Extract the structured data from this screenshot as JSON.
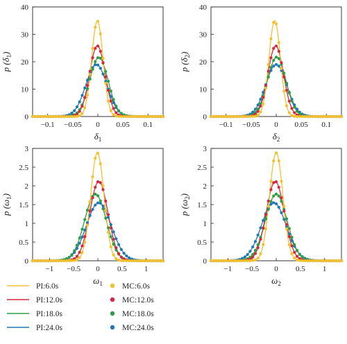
{
  "legend": {
    "lines": [
      {
        "label": "PI:6.0s",
        "color": "#f2c12e"
      },
      {
        "label": "PI:12.0s",
        "color": "#d7263d"
      },
      {
        "label": "PI:18.0s",
        "color": "#2e9e44"
      },
      {
        "label": "PI:24.0s",
        "color": "#1f77b4"
      }
    ],
    "markers": [
      {
        "label": "MC:6.0s",
        "color": "#f2c12e"
      },
      {
        "label": "MC:12.0s",
        "color": "#d7263d"
      },
      {
        "label": "MC:18.0s",
        "color": "#2e9e44"
      },
      {
        "label": "MC:24.0s",
        "color": "#1f77b4"
      }
    ]
  },
  "chart_data": [
    {
      "type": "line",
      "ylabel_main": "p (δ",
      "ylabel_sub": "1",
      "ylabel_end": ")",
      "xlabel_main": "δ",
      "xlabel_sub": "1",
      "xlim": [
        -0.13,
        0.13
      ],
      "ylim": [
        0,
        40
      ],
      "xticks": [
        -0.1,
        -0.05,
        0,
        0.05,
        0.1
      ],
      "xtick_labels": [
        "−0.1",
        "−0.05",
        "0",
        "0.05",
        "0.1"
      ],
      "yticks": [
        0,
        10,
        20,
        30,
        40
      ],
      "ytick_labels": [
        "0",
        "10",
        "20",
        "30",
        "40"
      ],
      "series": [
        {
          "name": "6.0s",
          "color": "#f2c12e",
          "peak": 34.9,
          "center": -0.001
        },
        {
          "name": "12.0s",
          "color": "#d7263d",
          "peak": 25.8,
          "center": -0.001
        },
        {
          "name": "18.0s",
          "color": "#2e9e44",
          "peak": 21.6,
          "center": 0.002
        },
        {
          "name": "24.0s",
          "color": "#1f77b4",
          "peak": 19.0,
          "center": -0.003
        }
      ]
    },
    {
      "type": "line",
      "ylabel_main": "p (δ",
      "ylabel_sub": "2",
      "ylabel_end": ")",
      "xlabel_main": "δ",
      "xlabel_sub": "2",
      "xlim": [
        -0.13,
        0.13
      ],
      "ylim": [
        0,
        40
      ],
      "xticks": [
        -0.1,
        -0.05,
        0,
        0.05,
        0.1
      ],
      "xtick_labels": [
        "−0.1",
        "−0.05",
        "0",
        "0.05",
        "0.1"
      ],
      "yticks": [
        0,
        10,
        20,
        30,
        40
      ],
      "ytick_labels": [
        "0",
        "10",
        "20",
        "30",
        "40"
      ],
      "series": [
        {
          "name": "6.0s",
          "color": "#f2c12e",
          "peak": 35.0,
          "center": -0.003
        },
        {
          "name": "12.0s",
          "color": "#d7263d",
          "peak": 25.8,
          "center": -0.001
        },
        {
          "name": "18.0s",
          "color": "#2e9e44",
          "peak": 21.7,
          "center": 0.001
        },
        {
          "name": "24.0s",
          "color": "#1f77b4",
          "peak": 19.0,
          "center": 0.0
        }
      ]
    },
    {
      "type": "line",
      "ylabel_main": "p (ω",
      "ylabel_sub": "1",
      "ylabel_end": ")",
      "xlabel_main": "ω",
      "xlabel_sub": "1",
      "xlim": [
        -1.35,
        1.35
      ],
      "ylim": [
        0,
        3
      ],
      "xticks": [
        -1,
        -0.5,
        0,
        0.5,
        1
      ],
      "xtick_labels": [
        "−1",
        "−0.5",
        "0",
        "0.5",
        "1"
      ],
      "yticks": [
        0,
        0.5,
        1,
        1.5,
        2,
        2.5,
        3
      ],
      "ytick_labels": [
        "0",
        "0.5",
        "1",
        "1.5",
        "2",
        "2.5",
        "3"
      ],
      "series": [
        {
          "name": "6.0s",
          "color": "#f2c12e",
          "peak": 2.88,
          "center": -0.01
        },
        {
          "name": "12.0s",
          "color": "#d7263d",
          "peak": 2.12,
          "center": 0.02
        },
        {
          "name": "18.0s",
          "color": "#2e9e44",
          "peak": 1.78,
          "center": -0.05
        },
        {
          "name": "24.0s",
          "color": "#1f77b4",
          "peak": 1.55,
          "center": 0.02
        }
      ]
    },
    {
      "type": "line",
      "ylabel_main": "p (ω",
      "ylabel_sub": "2",
      "ylabel_end": ")",
      "xlabel_main": "ω",
      "xlabel_sub": "2",
      "xlim": [
        -1.35,
        1.35
      ],
      "ylim": [
        0,
        3
      ],
      "xticks": [
        -1,
        -0.5,
        0,
        0.5,
        1
      ],
      "xtick_labels": [
        "−1",
        "−0.5",
        "0",
        "0.5",
        "1"
      ],
      "yticks": [
        0,
        0.5,
        1,
        1.5,
        2,
        2.5,
        3
      ],
      "ytick_labels": [
        "0",
        "0.5",
        "1",
        "1.5",
        "2",
        "2.5",
        "3"
      ],
      "series": [
        {
          "name": "6.0s",
          "color": "#f2c12e",
          "peak": 2.88,
          "center": 0.0
        },
        {
          "name": "12.0s",
          "color": "#d7263d",
          "peak": 2.12,
          "center": -0.02
        },
        {
          "name": "18.0s",
          "color": "#2e9e44",
          "peak": 1.78,
          "center": 0.0
        },
        {
          "name": "24.0s",
          "color": "#1f77b4",
          "peak": 1.55,
          "center": -0.05
        }
      ]
    }
  ]
}
